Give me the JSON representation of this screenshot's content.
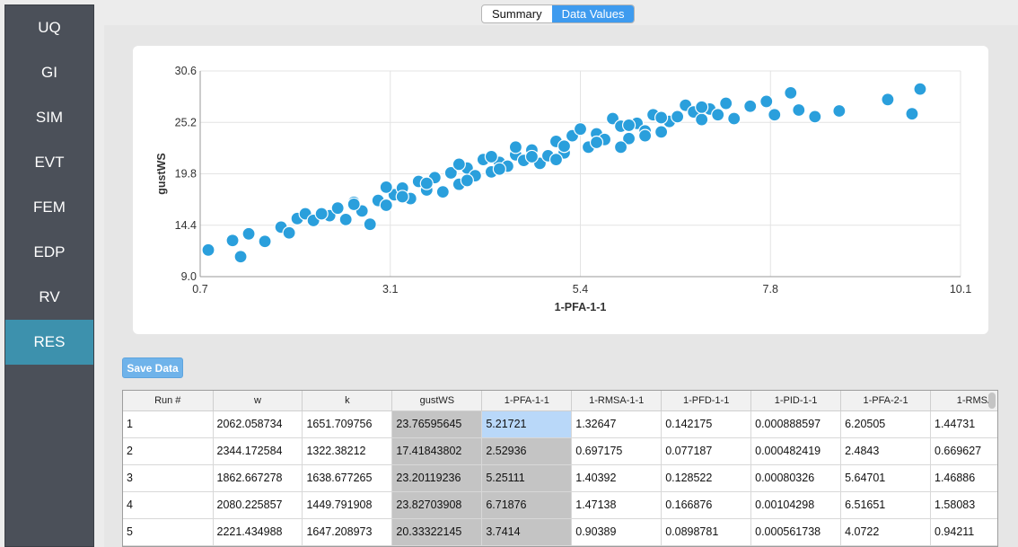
{
  "sidebar": {
    "items": [
      {
        "label": "UQ",
        "active": false
      },
      {
        "label": "GI",
        "active": false
      },
      {
        "label": "SIM",
        "active": false
      },
      {
        "label": "EVT",
        "active": false
      },
      {
        "label": "FEM",
        "active": false
      },
      {
        "label": "EDP",
        "active": false
      },
      {
        "label": "RV",
        "active": false
      },
      {
        "label": "RES",
        "active": true
      }
    ]
  },
  "tabs": [
    {
      "label": "Summary",
      "active": false
    },
    {
      "label": "Data Values",
      "active": true
    }
  ],
  "save_button": {
    "label": "Save Data"
  },
  "colors": {
    "accent": "#3e9bef",
    "nav_active": "#3d91ad",
    "point": "#2a9fdc"
  },
  "chart_data": {
    "type": "scatter",
    "xlabel": "1-PFA-1-1",
    "ylabel": "gustWS",
    "xlim": [
      0.7,
      10.1
    ],
    "ylim": [
      9.0,
      30.6
    ],
    "xticks": [
      "0.7",
      "3.1",
      "5.4",
      "7.8",
      "10.1"
    ],
    "yticks": [
      "9.0",
      "14.4",
      "19.8",
      "25.2",
      "30.6"
    ],
    "grid": true,
    "series": [
      {
        "points": [
          [
            0.8,
            11.8
          ],
          [
            1.1,
            12.8
          ],
          [
            1.2,
            11.1
          ],
          [
            1.3,
            13.5
          ],
          [
            1.5,
            12.7
          ],
          [
            1.7,
            14.2
          ],
          [
            1.8,
            13.6
          ],
          [
            1.9,
            15.1
          ],
          [
            2.0,
            15.6
          ],
          [
            2.1,
            14.9
          ],
          [
            2.3,
            15.4
          ],
          [
            2.4,
            16.2
          ],
          [
            2.5,
            15.0
          ],
          [
            2.6,
            16.8
          ],
          [
            2.7,
            15.9
          ],
          [
            2.8,
            14.5
          ],
          [
            2.9,
            17.0
          ],
          [
            3.0,
            16.5
          ],
          [
            3.1,
            17.6
          ],
          [
            3.2,
            18.3
          ],
          [
            3.3,
            17.2
          ],
          [
            3.4,
            19.0
          ],
          [
            3.5,
            18.1
          ],
          [
            3.6,
            19.4
          ],
          [
            3.7,
            17.9
          ],
          [
            3.8,
            19.9
          ],
          [
            3.9,
            18.7
          ],
          [
            4.0,
            20.4
          ],
          [
            4.1,
            19.6
          ],
          [
            4.2,
            21.3
          ],
          [
            4.3,
            20.0
          ],
          [
            4.4,
            21.0
          ],
          [
            4.5,
            20.6
          ],
          [
            4.6,
            21.8
          ],
          [
            4.7,
            21.2
          ],
          [
            4.8,
            22.3
          ],
          [
            4.9,
            20.9
          ],
          [
            5.0,
            21.7
          ],
          [
            5.1,
            23.2
          ],
          [
            5.2,
            22.0
          ],
          [
            5.3,
            23.8
          ],
          [
            5.4,
            24.5
          ],
          [
            5.5,
            22.6
          ],
          [
            5.6,
            24.0
          ],
          [
            5.7,
            23.4
          ],
          [
            5.8,
            25.6
          ],
          [
            5.9,
            24.8
          ],
          [
            6.0,
            23.5
          ],
          [
            6.1,
            25.1
          ],
          [
            6.2,
            24.3
          ],
          [
            6.3,
            26.0
          ],
          [
            6.4,
            24.2
          ],
          [
            6.5,
            25.3
          ],
          [
            6.6,
            25.8
          ],
          [
            6.7,
            27.0
          ],
          [
            6.8,
            26.3
          ],
          [
            6.9,
            25.5
          ],
          [
            7.0,
            26.6
          ],
          [
            7.1,
            26.0
          ],
          [
            7.2,
            27.2
          ],
          [
            7.3,
            25.6
          ],
          [
            7.5,
            26.9
          ],
          [
            7.7,
            27.4
          ],
          [
            7.8,
            26.0
          ],
          [
            8.0,
            28.3
          ],
          [
            8.1,
            26.5
          ],
          [
            8.3,
            25.8
          ],
          [
            8.6,
            26.4
          ],
          [
            9.2,
            27.6
          ],
          [
            9.5,
            26.1
          ],
          [
            9.6,
            28.7
          ],
          [
            2.2,
            15.6
          ],
          [
            2.6,
            16.6
          ],
          [
            3.2,
            17.4
          ],
          [
            3.5,
            18.8
          ],
          [
            4.0,
            19.1
          ],
          [
            4.4,
            20.3
          ],
          [
            4.8,
            21.6
          ],
          [
            5.2,
            22.7
          ],
          [
            5.6,
            23.1
          ],
          [
            6.0,
            24.9
          ],
          [
            6.4,
            25.7
          ],
          [
            6.9,
            26.8
          ],
          [
            4.6,
            22.6
          ],
          [
            3.9,
            20.8
          ],
          [
            3.0,
            18.4
          ],
          [
            5.9,
            22.6
          ],
          [
            6.2,
            23.8
          ],
          [
            4.3,
            21.6
          ],
          [
            5.1,
            21.3
          ]
        ]
      }
    ]
  },
  "table": {
    "columns": [
      "Run #",
      "w",
      "k",
      "gustWS",
      "1-PFA-1-1",
      "1-RMSA-1-1",
      "1-PFD-1-1",
      "1-PID-1-1",
      "1-PFA-2-1",
      "1-RMSA"
    ],
    "rows": [
      [
        "1",
        "2062.058734",
        "1651.709756",
        "23.76595645",
        "5.21721",
        "1.32647",
        "0.142175",
        "0.000888597",
        "6.20505",
        "1.44731"
      ],
      [
        "2",
        "2344.172584",
        "1322.38212",
        "17.41843802",
        "2.52936",
        "0.697175",
        "0.077187",
        "0.000482419",
        "2.4843",
        "0.669627"
      ],
      [
        "3",
        "1862.667278",
        "1638.677265",
        "23.20119236",
        "5.25111",
        "1.40392",
        "0.128522",
        "0.00080326",
        "5.64701",
        "1.46886"
      ],
      [
        "4",
        "2080.225857",
        "1449.791908",
        "23.82703908",
        "6.71876",
        "1.47138",
        "0.166876",
        "0.00104298",
        "6.51651",
        "1.58083"
      ],
      [
        "5",
        "2221.434988",
        "1647.208973",
        "20.33322145",
        "3.7414",
        "0.90389",
        "0.0898781",
        "0.000561738",
        "4.0722",
        "0.94211"
      ]
    ]
  }
}
